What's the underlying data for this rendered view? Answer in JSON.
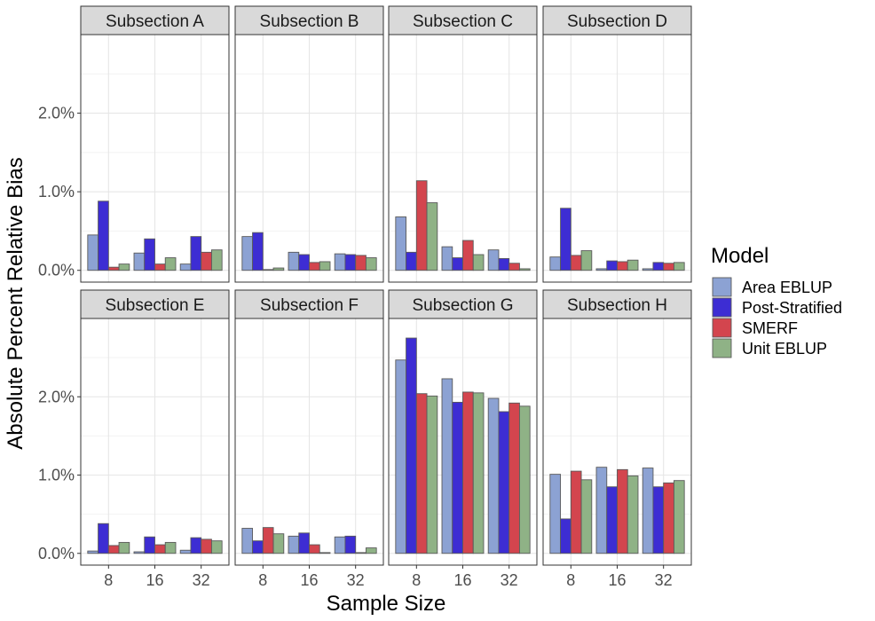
{
  "chart_data": {
    "type": "bar",
    "xlabel": "Sample Size",
    "ylabel": "Absolute Percent Relative Bias",
    "categories": [
      "8",
      "16",
      "32"
    ],
    "y_ticks": [
      0,
      1,
      2
    ],
    "y_tick_labels": [
      "0.0%",
      "1.0%",
      "2.0%"
    ],
    "ylim": [
      -0.15,
      3.0
    ],
    "grid": true,
    "legend": {
      "title": "Model",
      "position": "right",
      "entries": [
        {
          "name": "Area EBLUP",
          "color": "#8CA2D3"
        },
        {
          "name": "Post-Stratified",
          "color": "#3D2DD3"
        },
        {
          "name": "SMERF",
          "color": "#D3454E"
        },
        {
          "name": "Unit EBLUP",
          "color": "#8FB286"
        }
      ]
    },
    "panels": [
      {
        "title": "Subsection A",
        "series": [
          {
            "name": "Area EBLUP",
            "values": [
              0.45,
              0.22,
              0.08
            ]
          },
          {
            "name": "Post-Stratified",
            "values": [
              0.88,
              0.4,
              0.43
            ]
          },
          {
            "name": "SMERF",
            "values": [
              0.04,
              0.08,
              0.23
            ]
          },
          {
            "name": "Unit EBLUP",
            "values": [
              0.08,
              0.16,
              0.26
            ]
          }
        ]
      },
      {
        "title": "Subsection B",
        "series": [
          {
            "name": "Area EBLUP",
            "values": [
              0.43,
              0.23,
              0.21
            ]
          },
          {
            "name": "Post-Stratified",
            "values": [
              0.48,
              0.2,
              0.2
            ]
          },
          {
            "name": "SMERF",
            "values": [
              0.01,
              0.1,
              0.19
            ]
          },
          {
            "name": "Unit EBLUP",
            "values": [
              0.03,
              0.11,
              0.16
            ]
          }
        ]
      },
      {
        "title": "Subsection C",
        "series": [
          {
            "name": "Area EBLUP",
            "values": [
              0.68,
              0.3,
              0.26
            ]
          },
          {
            "name": "Post-Stratified",
            "values": [
              0.23,
              0.16,
              0.15
            ]
          },
          {
            "name": "SMERF",
            "values": [
              1.14,
              0.38,
              0.09
            ]
          },
          {
            "name": "Unit EBLUP",
            "values": [
              0.86,
              0.2,
              0.02
            ]
          }
        ]
      },
      {
        "title": "Subsection D",
        "series": [
          {
            "name": "Area EBLUP",
            "values": [
              0.17,
              0.02,
              0.02
            ]
          },
          {
            "name": "Post-Stratified",
            "values": [
              0.79,
              0.12,
              0.1
            ]
          },
          {
            "name": "SMERF",
            "values": [
              0.19,
              0.11,
              0.09
            ]
          },
          {
            "name": "Unit EBLUP",
            "values": [
              0.25,
              0.13,
              0.1
            ]
          }
        ]
      },
      {
        "title": "Subsection E",
        "series": [
          {
            "name": "Area EBLUP",
            "values": [
              0.03,
              0.02,
              0.04
            ]
          },
          {
            "name": "Post-Stratified",
            "values": [
              0.38,
              0.21,
              0.2
            ]
          },
          {
            "name": "SMERF",
            "values": [
              0.1,
              0.11,
              0.18
            ]
          },
          {
            "name": "Unit EBLUP",
            "values": [
              0.14,
              0.14,
              0.16
            ]
          }
        ]
      },
      {
        "title": "Subsection F",
        "series": [
          {
            "name": "Area EBLUP",
            "values": [
              0.32,
              0.22,
              0.21
            ]
          },
          {
            "name": "Post-Stratified",
            "values": [
              0.16,
              0.26,
              0.22
            ]
          },
          {
            "name": "SMERF",
            "values": [
              0.33,
              0.11,
              0.01
            ]
          },
          {
            "name": "Unit EBLUP",
            "values": [
              0.25,
              0.01,
              0.07
            ]
          }
        ]
      },
      {
        "title": "Subsection G",
        "series": [
          {
            "name": "Area EBLUP",
            "values": [
              2.47,
              2.23,
              1.98
            ]
          },
          {
            "name": "Post-Stratified",
            "values": [
              2.75,
              1.93,
              1.81
            ]
          },
          {
            "name": "SMERF",
            "values": [
              2.04,
              2.06,
              1.92
            ]
          },
          {
            "name": "Unit EBLUP",
            "values": [
              2.01,
              2.05,
              1.88
            ]
          }
        ]
      },
      {
        "title": "Subsection H",
        "series": [
          {
            "name": "Area EBLUP",
            "values": [
              1.01,
              1.1,
              1.09
            ]
          },
          {
            "name": "Post-Stratified",
            "values": [
              0.44,
              0.85,
              0.85
            ]
          },
          {
            "name": "SMERF",
            "values": [
              1.05,
              1.07,
              0.9
            ]
          },
          {
            "name": "Unit EBLUP",
            "values": [
              0.94,
              0.99,
              0.93
            ]
          }
        ]
      }
    ]
  }
}
